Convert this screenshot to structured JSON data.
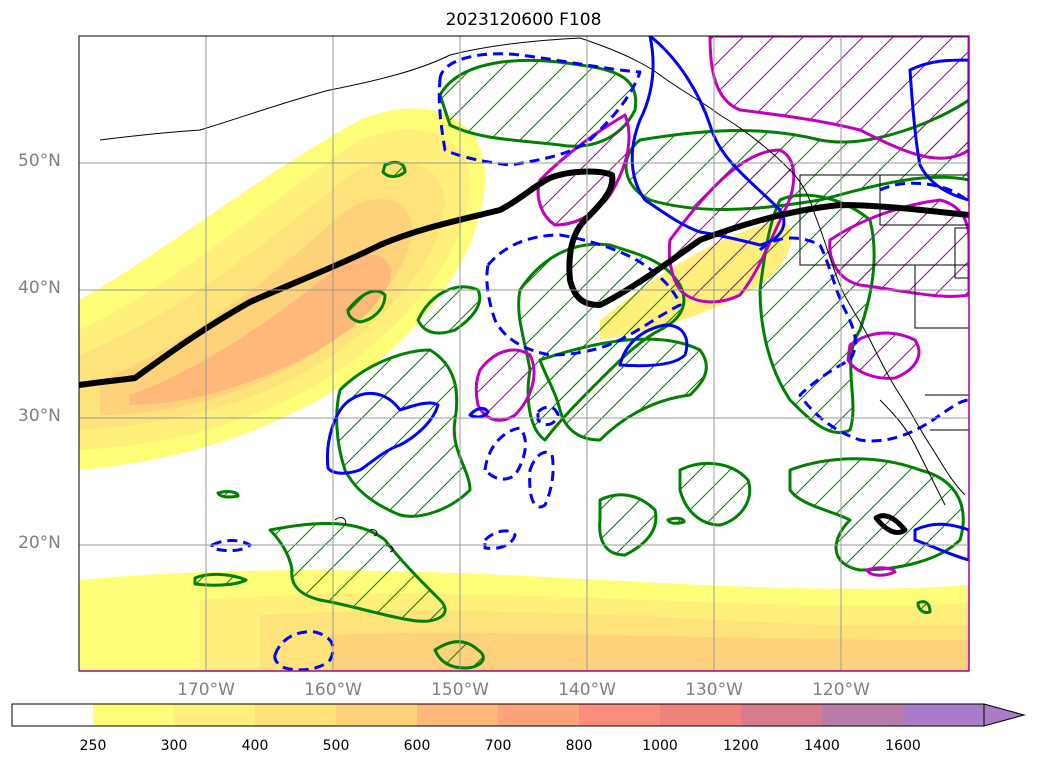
{
  "title": "2023120600 F108",
  "lat_labels": [
    "50°N",
    "40°N",
    "30°N",
    "20°N"
  ],
  "lon_labels": [
    "170°W",
    "160°W",
    "150°W",
    "140°W",
    "130°W",
    "120°W"
  ],
  "colorbar": {
    "ticks": [
      "250",
      "300",
      "400",
      "500",
      "600",
      "700",
      "800",
      "1000",
      "1200",
      "1400",
      "1600"
    ],
    "colors": [
      "#ffffff",
      "#fefe78",
      "#fef07a",
      "#fee27a",
      "#fed27a",
      "#feb87a",
      "#fea47c",
      "#fe8c7c",
      "#f0827e",
      "#d87c8c",
      "#b87caa",
      "#a87cc6"
    ]
  },
  "legend_colors": {
    "hatch_green": "#008000",
    "contour_blue": "#0000ff",
    "contour_magenta": "#c000c0",
    "jet_axis": "#000000"
  }
}
